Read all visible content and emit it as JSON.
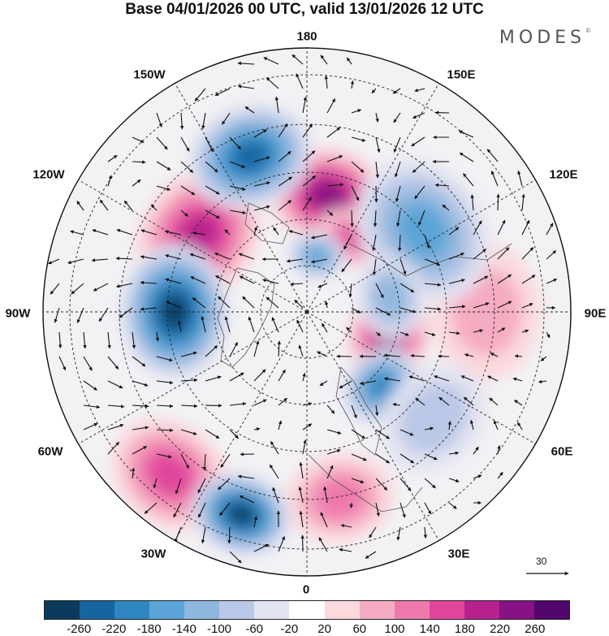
{
  "title": "Base 04/01/2026 00 UTC, valid 13/01/2026 12 UTC",
  "brand": "MODES",
  "brand_mark": "©",
  "longitude_labels": [
    {
      "key": "180",
      "text": "180"
    },
    {
      "key": "150E",
      "text": "150E"
    },
    {
      "key": "120E",
      "text": "120E"
    },
    {
      "key": "90E",
      "text": "90E"
    },
    {
      "key": "60E",
      "text": "60E"
    },
    {
      "key": "30E",
      "text": "30E"
    },
    {
      "key": "0",
      "text": "0"
    },
    {
      "key": "30W",
      "text": "30W"
    },
    {
      "key": "60W",
      "text": "60W"
    },
    {
      "key": "90W",
      "text": "90W"
    },
    {
      "key": "120W",
      "text": "120W"
    },
    {
      "key": "150W",
      "text": "150W"
    }
  ],
  "vector_scale": {
    "value": "30"
  },
  "colorbar": {
    "colors": [
      "#0b3a5c",
      "#1565a0",
      "#2e86c1",
      "#5aa4d6",
      "#8fb6de",
      "#b9c8e6",
      "#e2e3f1",
      "#ffffff",
      "#fbd9dd",
      "#f5abc1",
      "#ee79ac",
      "#e0459c",
      "#b8208e",
      "#861283",
      "#52076f"
    ],
    "labels": [
      "-260",
      "-220",
      "-180",
      "-140",
      "-100",
      "-60",
      "-20",
      "20",
      "60",
      "100",
      "140",
      "180",
      "220",
      "260"
    ]
  },
  "anomalies": [
    {
      "name": "anomaly-high-bering",
      "lon": 170,
      "lat": 65,
      "value": 240,
      "size": 14
    },
    {
      "name": "anomaly-high-canada-northwest",
      "lon": -125,
      "lat": 62,
      "value": 200,
      "size": 17
    },
    {
      "name": "anomaly-high-east-siberia",
      "lon": 150,
      "lat": 72,
      "value": 160,
      "size": 8
    },
    {
      "name": "anomaly-high-kara-sea",
      "lon": 75,
      "lat": 72,
      "value": 220,
      "size": 12
    },
    {
      "name": "anomaly-high-north-atlantic",
      "lon": -40,
      "lat": 45,
      "value": 140,
      "size": 15
    },
    {
      "name": "anomaly-high-europe",
      "lon": 10,
      "lat": 50,
      "value": 120,
      "size": 13
    },
    {
      "name": "anomaly-high-central-asia",
      "lon": 90,
      "lat": 52,
      "value": 60,
      "size": 16
    },
    {
      "name": "anomaly-low-alaska-gulf",
      "lon": -160,
      "lat": 55,
      "value": -240,
      "size": 15
    },
    {
      "name": "anomaly-low-hudson",
      "lon": -90,
      "lat": 62,
      "value": -260,
      "size": 16
    },
    {
      "name": "anomaly-low-mid-atlantic",
      "lon": -18,
      "lat": 45,
      "value": -260,
      "size": 12
    },
    {
      "name": "anomaly-low-scandinavia",
      "lon": 45,
      "lat": 68,
      "value": -180,
      "size": 10
    },
    {
      "name": "anomaly-low-siberia",
      "lon": 125,
      "lat": 60,
      "value": -140,
      "size": 18
    },
    {
      "name": "anomaly-low-laptev",
      "lon": 170,
      "lat": 78,
      "value": -140,
      "size": 7
    },
    {
      "name": "anomaly-low-central-siberia",
      "lon": 100,
      "lat": 72,
      "value": -100,
      "size": 10
    },
    {
      "name": "anomaly-low-western-russia",
      "lon": 50,
      "lat": 55,
      "value": -60,
      "size": 14
    }
  ]
}
